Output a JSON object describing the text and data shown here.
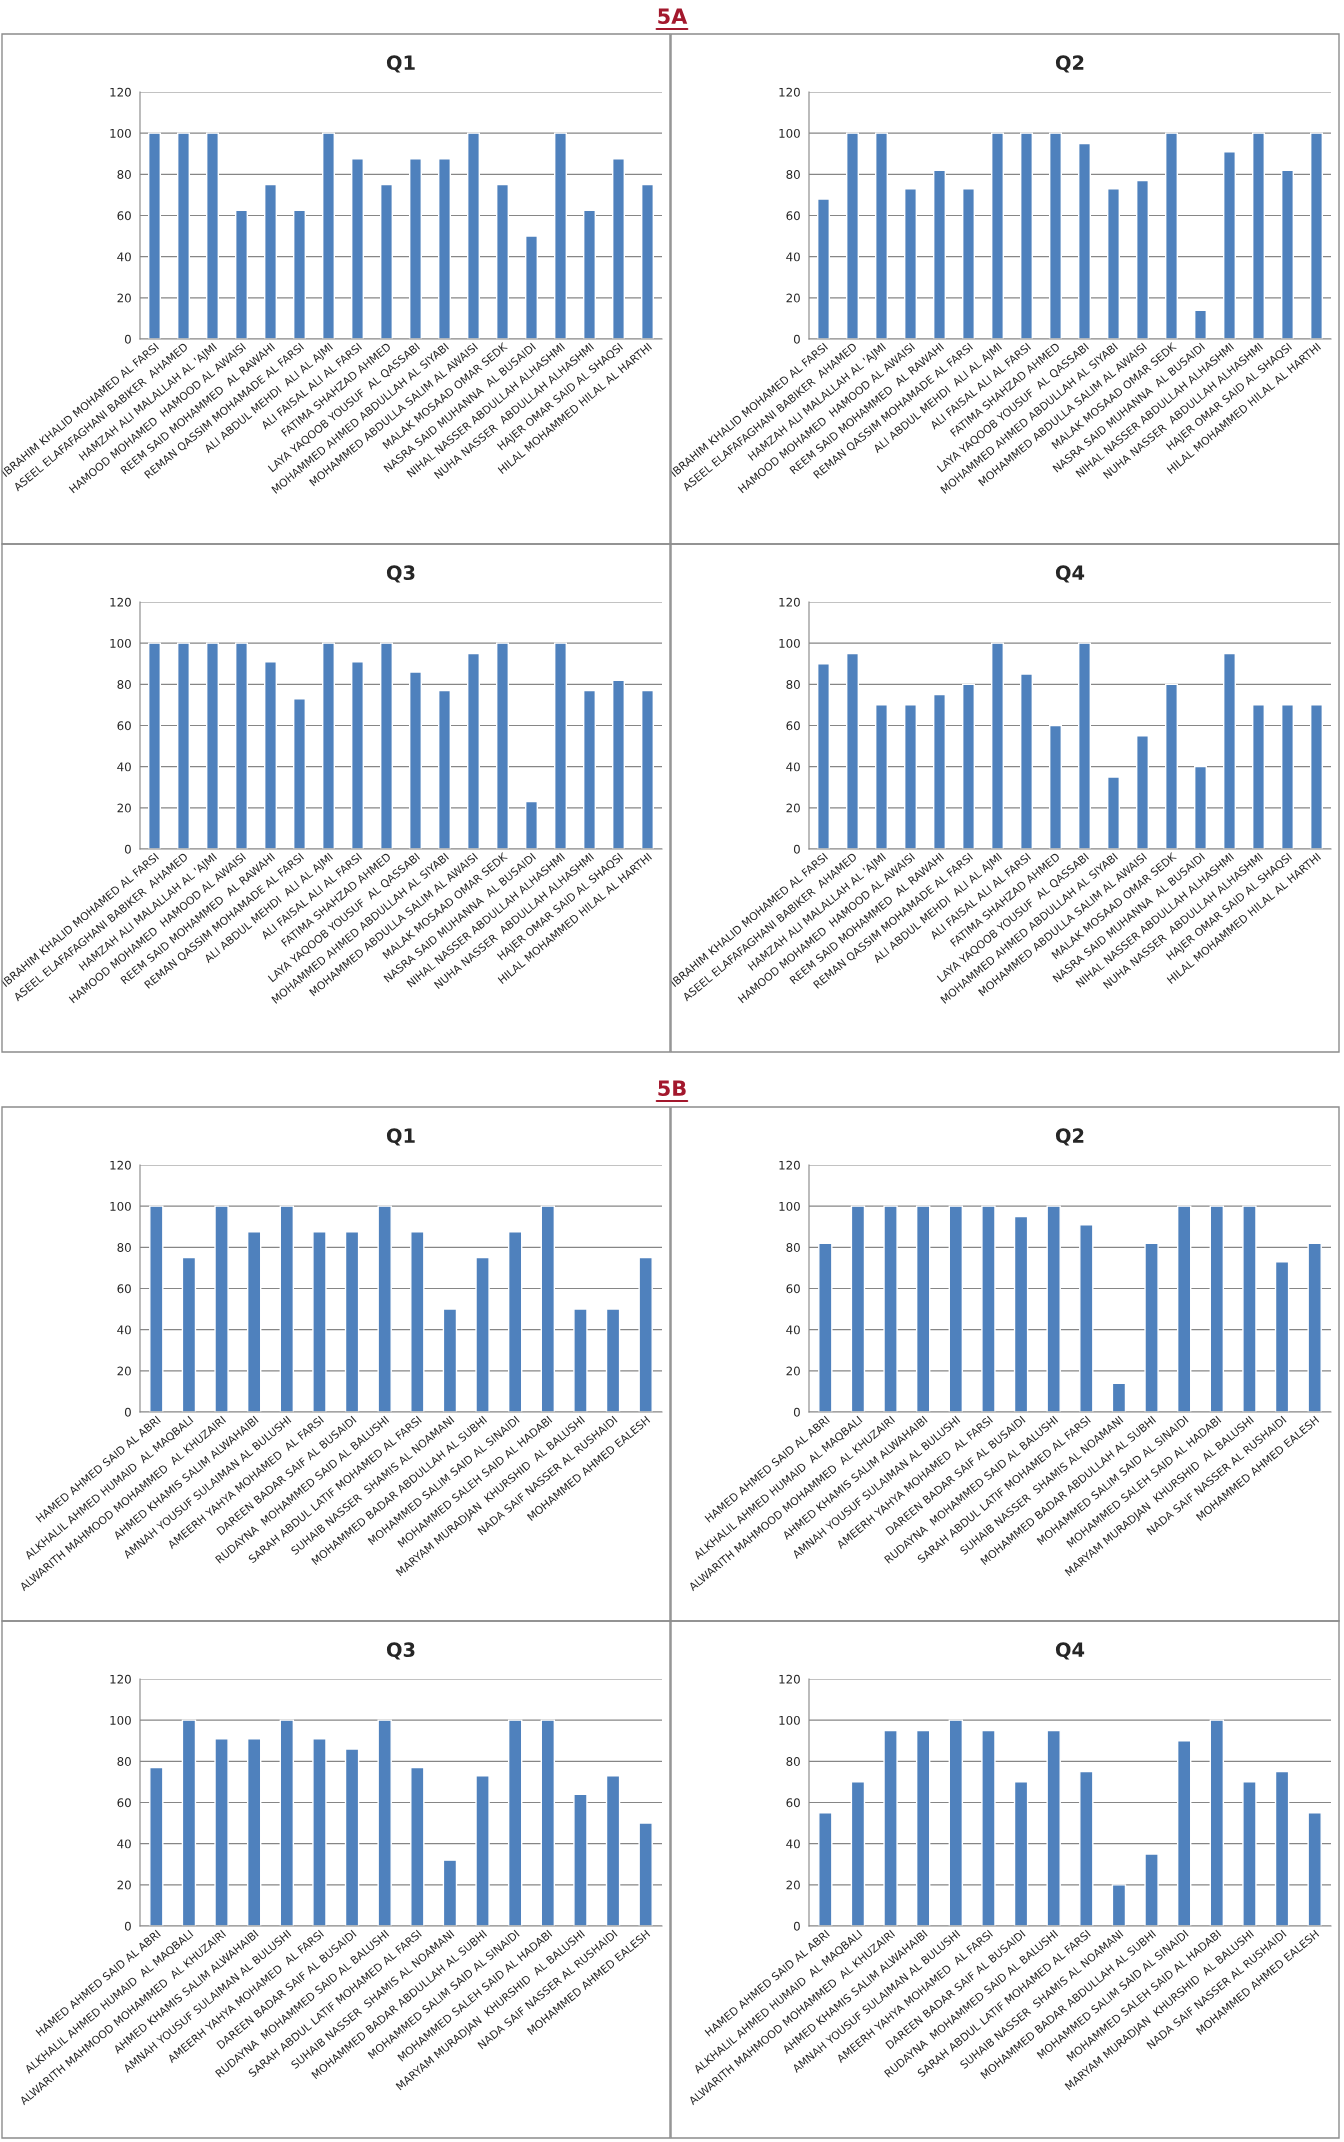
{
  "chart_data": [
    {
      "type": "bar",
      "title": "Q1",
      "annotations": [
        "5A"
      ],
      "categories": [
        "IBRAHIM KHALID MOHAMED AL FARSI",
        "ASEEL ELAFAFAGHANI BABIKER  AHAMED",
        "HAMZAH ALI MALALLAH AL 'AJMI",
        "HAMOOD MOHAMED  HAMOOD AL AWAISI",
        "REEM SAID MOHAMMED  AL RAWAHI",
        "REMAN QASSIM MOHAMADE AL FARSI",
        "ALI ABDUL MEHDI  ALI AL AJMI",
        "ALI FAISAL ALI AL FARSI",
        "FATIMA SHAHZAD AHMED",
        "LAYA YAQOOB YOUSUF  AL QASSABI",
        "MOHAMMED AHMED ABDULLAH AL SIYABI",
        "MOHAMMED ABDULLA SALIM AL AWAISI",
        "MALAK MOSAAD OMAR SEDK",
        "NASRA SAID MUHANNA  AL BUSAIDI",
        "NIHAL NASSER ABDULLAH ALHASHMI",
        "NUHA NASSER  ABDULLAH ALHASHMI",
        "HAJER OMAR SAID AL SHAQSI",
        "HILAL MOHAMMED HILAL AL HARTHI"
      ],
      "values": [
        100,
        100,
        100,
        62.5,
        75,
        62.5,
        100,
        87.5,
        75,
        87.5,
        87.5,
        100,
        75,
        50,
        100,
        62.5,
        87.5,
        75
      ],
      "color": "#4f81bd",
      "ylim": [
        0,
        120
      ],
      "yticks": [
        0,
        20,
        40,
        60,
        80,
        100,
        120
      ],
      "grid": "y"
    },
    {
      "type": "bar",
      "title": "Q2",
      "categories": [
        "IBRAHIM KHALID MOHAMED AL FARSI",
        "ASEEL ELAFAFAGHANI BABIKER  AHAMED",
        "HAMZAH ALI MALALLAH AL 'AJMI",
        "HAMOOD MOHAMED  HAMOOD AL AWAISI",
        "REEM SAID MOHAMMED  AL RAWAHI",
        "REMAN QASSIM MOHAMADE AL FARSI",
        "ALI ABDUL MEHDI  ALI AL AJMI",
        "ALI FAISAL ALI AL FARSI",
        "FATIMA SHAHZAD AHMED",
        "LAYA YAQOOB YOUSUF  AL QASSABI",
        "MOHAMMED AHMED ABDULLAH AL SIYABI",
        "MOHAMMED ABDULLA SALIM AL AWAISI",
        "MALAK MOSAAD OMAR SEDK",
        "NASRA SAID MUHANNA  AL BUSAIDI",
        "NIHAL NASSER ABDULLAH ALHASHMI",
        "NUHA NASSER  ABDULLAH ALHASHMI",
        "HAJER OMAR SAID AL SHAQSI",
        "HILAL MOHAMMED HILAL AL HARTHI"
      ],
      "values": [
        68,
        100,
        100,
        73,
        82,
        73,
        100,
        100,
        100,
        95,
        73,
        77,
        100,
        14,
        91,
        100,
        82,
        100
      ],
      "color": "#4f81bd",
      "ylim": [
        0,
        120
      ],
      "yticks": [
        0,
        20,
        40,
        60,
        80,
        100,
        120
      ],
      "grid": "y"
    },
    {
      "type": "bar",
      "title": "Q3",
      "categories": [
        "IBRAHIM KHALID MOHAMED AL FARSI",
        "ASEEL ELAFAFAGHANI BABIKER  AHAMED",
        "HAMZAH ALI MALALLAH AL 'AJMI",
        "HAMOOD MOHAMED  HAMOOD AL AWAISI",
        "REEM SAID MOHAMMED  AL RAWAHI",
        "REMAN QASSIM MOHAMADE AL FARSI",
        "ALI ABDUL MEHDI  ALI AL AJMI",
        "ALI FAISAL ALI AL FARSI",
        "FATIMA SHAHZAD AHMED",
        "LAYA YAQOOB YOUSUF  AL QASSABI",
        "MOHAMMED AHMED ABDULLAH AL SIYABI",
        "MOHAMMED ABDULLA SALIM AL AWAISI",
        "MALAK MOSAAD OMAR SEDK",
        "NASRA SAID MUHANNA  AL BUSAIDI",
        "NIHAL NASSER ABDULLAH ALHASHMI",
        "NUHA NASSER  ABDULLAH ALHASHMI",
        "HAJER OMAR SAID AL SHAQSI",
        "HILAL MOHAMMED HILAL AL HARTHI"
      ],
      "values": [
        100,
        100,
        100,
        100,
        91,
        73,
        100,
        91,
        100,
        86,
        77,
        95,
        100,
        23,
        100,
        77,
        82,
        77
      ],
      "color": "#4f81bd",
      "ylim": [
        0,
        120
      ],
      "yticks": [
        0,
        20,
        40,
        60,
        80,
        100,
        120
      ],
      "grid": "y"
    },
    {
      "type": "bar",
      "title": "Q4",
      "categories": [
        "IBRAHIM KHALID MOHAMED AL FARSI",
        "ASEEL ELAFAFAGHANI BABIKER  AHAMED",
        "HAMZAH ALI MALALLAH AL 'AJMI",
        "HAMOOD MOHAMED  HAMOOD AL AWAISI",
        "REEM SAID MOHAMMED  AL RAWAHI",
        "REMAN QASSIM MOHAMADE AL FARSI",
        "ALI ABDUL MEHDI  ALI AL AJMI",
        "ALI FAISAL ALI AL FARSI",
        "FATIMA SHAHZAD AHMED",
        "LAYA YAQOOB YOUSUF  AL QASSABI",
        "MOHAMMED AHMED ABDULLAH AL SIYABI",
        "MOHAMMED ABDULLA SALIM AL AWAISI",
        "MALAK MOSAAD OMAR SEDK",
        "NASRA SAID MUHANNA  AL BUSAIDI",
        "NIHAL NASSER ABDULLAH ALHASHMI",
        "NUHA NASSER  ABDULLAH ALHASHMI",
        "HAJER OMAR SAID AL SHAQSI",
        "HILAL MOHAMMED HILAL AL HARTHI"
      ],
      "values": [
        90,
        95,
        70,
        70,
        75,
        80,
        100,
        85,
        60,
        100,
        35,
        55,
        80,
        40,
        95,
        70,
        70,
        70
      ],
      "color": "#4f81bd",
      "ylim": [
        0,
        120
      ],
      "yticks": [
        0,
        20,
        40,
        60,
        80,
        100,
        120
      ],
      "grid": "y"
    },
    {
      "type": "bar",
      "title": "Q1",
      "annotations": [
        "5B"
      ],
      "categories": [
        "HAMED AHMED SAID AL ABRI",
        "ALKHALIL AHMED HUMAID  AL MAQBALI",
        "ALWARITH MAHMOOD MOHAMMED  AL KHUZAIRI",
        "AHMED KHAMIS SALIM ALWAHAIBI",
        "AMNAH YOUSUF SULAIMAN AL BULUSHI",
        "AMEERH YAHYA MOHAMED  AL FARSI",
        "DAREEN BADAR SAIF AL BUSAIDI",
        "RUDAYNA  MOHAMMED SAID AL BALUSHI",
        "SARAH ABDUL LATIF MOHAMED AL FARSI",
        "SUHAIB NASSER  SHAMIS AL NOAMANI",
        "MOHAMMED BADAR ABDULLAH AL SUBHI",
        "MOHAMMED SALIM SAID AL SINAIDI",
        "MOHAMMED SALEH SAID AL HADABI",
        "MARYAM MURADJAN  KHURSHID  AL BALUSHI",
        "NADA SAIF NASSER AL RUSHAIDI",
        "MOHAMMED AHMED EALESH"
      ],
      "values": [
        100,
        75,
        100,
        87.5,
        100,
        87.5,
        87.5,
        100,
        87.5,
        50,
        75,
        87.5,
        100,
        50,
        50,
        75
      ],
      "color": "#4f81bd",
      "ylim": [
        0,
        120
      ],
      "yticks": [
        0,
        20,
        40,
        60,
        80,
        100,
        120
      ],
      "grid": "y"
    },
    {
      "type": "bar",
      "title": "Q2",
      "categories": [
        "HAMED AHMED SAID AL ABRI",
        "ALKHALIL AHMED HUMAID  AL MAQBALI",
        "ALWARITH MAHMOOD MOHAMMED  AL KHUZAIRI",
        "AHMED KHAMIS SALIM ALWAHAIBI",
        "AMNAH YOUSUF SULAIMAN AL BULUSHI",
        "AMEERH YAHYA MOHAMED  AL FARSI",
        "DAREEN BADAR SAIF AL BUSAIDI",
        "RUDAYNA  MOHAMMED SAID AL BALUSHI",
        "SARAH ABDUL LATIF MOHAMED AL FARSI",
        "SUHAIB NASSER  SHAMIS AL NOAMANI",
        "MOHAMMED BADAR ABDULLAH AL SUBHI",
        "MOHAMMED SALIM SAID AL SINAIDI",
        "MOHAMMED SALEH SAID AL HADABI",
        "MARYAM MURADJAN  KHURSHID  AL BALUSHI",
        "NADA SAIF NASSER AL RUSHAIDI",
        "MOHAMMED AHMED EALESH"
      ],
      "values": [
        82,
        100,
        100,
        100,
        100,
        100,
        95,
        100,
        91,
        14,
        82,
        100,
        100,
        100,
        73,
        82
      ],
      "color": "#4f81bd",
      "ylim": [
        0,
        120
      ],
      "yticks": [
        0,
        20,
        40,
        60,
        80,
        100,
        120
      ],
      "grid": "y"
    },
    {
      "type": "bar",
      "title": "Q3",
      "categories": [
        "HAMED AHMED SAID AL ABRI",
        "ALKHALIL AHMED HUMAID  AL MAQBALI",
        "ALWARITH MAHMOOD MOHAMMED  AL KHUZAIRI",
        "AHMED KHAMIS SALIM ALWAHAIBI",
        "AMNAH YOUSUF SULAIMAN AL BULUSHI",
        "AMEERH YAHYA MOHAMED  AL FARSI",
        "DAREEN BADAR SAIF AL BUSAIDI",
        "RUDAYNA  MOHAMMED SAID AL BALUSHI",
        "SARAH ABDUL LATIF MOHAMED AL FARSI",
        "SUHAIB NASSER  SHAMIS AL NOAMANI",
        "MOHAMMED BADAR ABDULLAH AL SUBHI",
        "MOHAMMED SALIM SAID AL SINAIDI",
        "MOHAMMED SALEH SAID AL HADABI",
        "MARYAM MURADJAN  KHURSHID  AL BALUSHI",
        "NADA SAIF NASSER AL RUSHAIDI",
        "MOHAMMED AHMED EALESH"
      ],
      "values": [
        77,
        100,
        91,
        91,
        100,
        91,
        86,
        100,
        77,
        32,
        73,
        100,
        100,
        64,
        73,
        50
      ],
      "color": "#4f81bd",
      "ylim": [
        0,
        120
      ],
      "yticks": [
        0,
        20,
        40,
        60,
        80,
        100,
        120
      ],
      "grid": "y"
    },
    {
      "type": "bar",
      "title": "Q4",
      "categories": [
        "HAMED AHMED SAID AL ABRI",
        "ALKHALIL AHMED HUMAID  AL MAQBALI",
        "ALWARITH MAHMOOD MOHAMMED  AL KHUZAIRI",
        "AHMED KHAMIS SALIM ALWAHAIBI",
        "AMNAH YOUSUF SULAIMAN AL BULUSHI",
        "AMEERH YAHYA MOHAMED  AL FARSI",
        "DAREEN BADAR SAIF AL BUSAIDI",
        "RUDAYNA  MOHAMMED SAID AL BALUSHI",
        "SARAH ABDUL LATIF MOHAMED AL FARSI",
        "SUHAIB NASSER  SHAMIS AL NOAMANI",
        "MOHAMMED BADAR ABDULLAH AL SUBHI",
        "MOHAMMED SALIM SAID AL SINAIDI",
        "MOHAMMED SALEH SAID AL HADABI",
        "MARYAM MURADJAN  KHURSHID  AL BALUSHI",
        "NADA SAIF NASSER AL RUSHAIDI",
        "MOHAMMED AHMED EALESH"
      ],
      "values": [
        55,
        70,
        95,
        95,
        100,
        95,
        70,
        95,
        75,
        20,
        35,
        90,
        100,
        70,
        75,
        55
      ],
      "color": "#4f81bd",
      "ylim": [
        0,
        120
      ],
      "yticks": [
        0,
        20,
        40,
        60,
        80,
        100,
        120
      ],
      "grid": "y"
    }
  ]
}
